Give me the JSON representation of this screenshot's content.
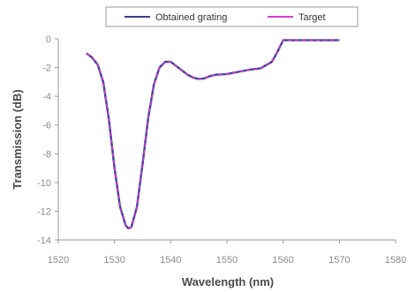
{
  "chart_data": {
    "type": "line",
    "xlabel": "Wavelength (nm)",
    "ylabel": "Transmission (dB)",
    "xlim": [
      1520,
      1580
    ],
    "ylim": [
      -14,
      0
    ],
    "xticks": [
      1520,
      1530,
      1540,
      1550,
      1560,
      1570,
      1580
    ],
    "yticks": [
      0,
      -2,
      -4,
      -6,
      -8,
      -10,
      -12,
      -14
    ],
    "grid": false,
    "legend_position": "top-center",
    "series": [
      {
        "name": "Obtained grating",
        "color": "#3a3f8f",
        "x": [
          1525,
          1526,
          1527,
          1528,
          1529,
          1530,
          1531,
          1532,
          1532.5,
          1533,
          1534,
          1535,
          1536,
          1537,
          1538,
          1539,
          1540,
          1541,
          1542,
          1543,
          1544,
          1545,
          1546,
          1547,
          1548,
          1550,
          1552,
          1554,
          1556,
          1558,
          1559,
          1560,
          1562,
          1565,
          1570
        ],
        "y": [
          -1.0,
          -1.3,
          -1.8,
          -3.0,
          -5.6,
          -9.0,
          -11.7,
          -13.0,
          -13.2,
          -13.1,
          -11.7,
          -8.7,
          -5.5,
          -3.2,
          -2.0,
          -1.6,
          -1.6,
          -1.9,
          -2.2,
          -2.5,
          -2.7,
          -2.8,
          -2.75,
          -2.6,
          -2.5,
          -2.45,
          -2.3,
          -2.15,
          -2.05,
          -1.6,
          -0.9,
          -0.1,
          -0.1,
          -0.1,
          -0.1
        ]
      },
      {
        "name": "Target",
        "color": "#d23fd6",
        "x": [
          1525,
          1526,
          1527,
          1528,
          1529,
          1530,
          1531,
          1532,
          1532.5,
          1533,
          1534,
          1535,
          1536,
          1537,
          1538,
          1539,
          1540,
          1541,
          1542,
          1543,
          1544,
          1545,
          1546,
          1547,
          1548,
          1550,
          1552,
          1554,
          1556,
          1558,
          1559,
          1560,
          1562,
          1565,
          1570
        ],
        "y": [
          -1.0,
          -1.3,
          -1.8,
          -3.0,
          -5.6,
          -9.0,
          -11.7,
          -13.0,
          -13.2,
          -13.1,
          -11.7,
          -8.7,
          -5.5,
          -3.2,
          -2.0,
          -1.6,
          -1.6,
          -1.9,
          -2.2,
          -2.5,
          -2.7,
          -2.8,
          -2.75,
          -2.6,
          -2.5,
          -2.45,
          -2.3,
          -2.15,
          -2.05,
          -1.6,
          -0.9,
          -0.1,
          -0.1,
          -0.1,
          -0.1
        ]
      }
    ]
  }
}
